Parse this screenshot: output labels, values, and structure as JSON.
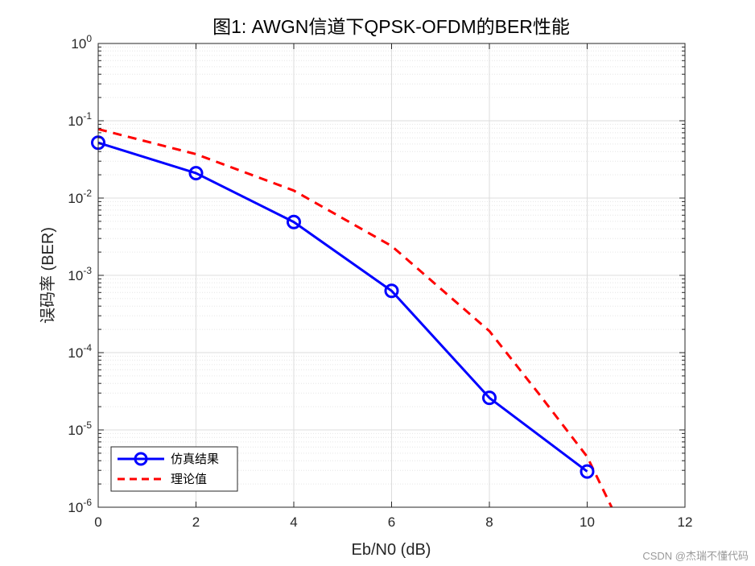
{
  "chart_data": {
    "type": "line",
    "title": "图1: AWGN信道下QPSK-OFDM的BER性能",
    "xlabel": "Eb/N0 (dB)",
    "ylabel": "误码率 (BER)",
    "xlim": [
      0,
      12
    ],
    "ylim": [
      1e-06,
      1
    ],
    "yscale": "log",
    "grid": true,
    "minor_grid": true,
    "legend_position": "bottom-left",
    "x_ticks": [
      0,
      2,
      4,
      6,
      8,
      10,
      12
    ],
    "y_tick_exponents": [
      0,
      -1,
      -2,
      -3,
      -4,
      -5,
      -6
    ],
    "y_tick_base": "10",
    "series": [
      {
        "name": "仿真结果",
        "color": "#0000ff",
        "style": "solid",
        "marker": "circle",
        "x": [
          0,
          2,
          4,
          6,
          8,
          10
        ],
        "y": [
          0.052,
          0.021,
          0.0049,
          0.00063,
          2.6e-05,
          2.9e-06
        ]
      },
      {
        "name": "理论值",
        "color": "#ff0000",
        "style": "dashed",
        "marker": "none",
        "x": [
          0,
          2,
          4,
          6,
          8,
          9,
          10,
          10.5
        ],
        "y": [
          0.078,
          0.037,
          0.0125,
          0.0024,
          0.00019,
          3e-05,
          4.5e-06,
          1e-06
        ]
      }
    ]
  },
  "watermark": "CSDN @杰瑞不懂代码"
}
